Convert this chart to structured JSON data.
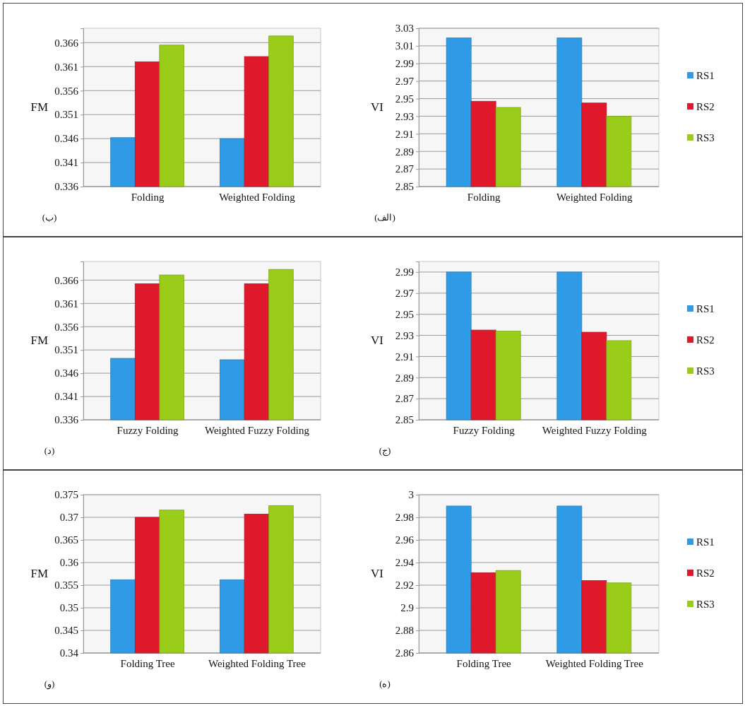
{
  "chart_data": [
    {
      "type": "bar",
      "ylabel": "FM",
      "categories": [
        "Folding",
        "Weighted Folding"
      ],
      "series": [
        {
          "color": "#2f9be6",
          "values": [
            0.3462,
            0.346
          ]
        },
        {
          "color": "#e0182c",
          "values": [
            0.362,
            0.3631
          ]
        },
        {
          "color": "#9acd1a",
          "values": [
            0.3655,
            0.3674
          ]
        }
      ],
      "ylim": [
        0.336,
        0.369
      ],
      "yticks": [
        0.336,
        0.341,
        0.346,
        0.351,
        0.356,
        0.361,
        0.366
      ],
      "grid": "y",
      "legend": false,
      "annotations": [
        "(ب)"
      ]
    },
    {
      "type": "bar",
      "ylabel": "VI",
      "categories": [
        "Folding",
        "Weighted Folding"
      ],
      "series": [
        {
          "name": "RS1",
          "color": "#2f9be6",
          "values": [
            3.019,
            3.019
          ]
        },
        {
          "name": "RS2",
          "color": "#e0182c",
          "values": [
            2.947,
            2.945
          ]
        },
        {
          "name": "RS3",
          "color": "#9acd1a",
          "values": [
            2.94,
            2.93
          ]
        }
      ],
      "ylim": [
        2.85,
        3.03
      ],
      "yticks": [
        2.85,
        2.87,
        2.89,
        2.91,
        2.93,
        2.95,
        2.97,
        2.99,
        3.01,
        3.03
      ],
      "grid": "y",
      "legend": "right",
      "annotations": [
        "(الف)"
      ]
    },
    {
      "type": "bar",
      "ylabel": "FM",
      "categories": [
        "Fuzzy Folding",
        "Weighted Fuzzy Folding"
      ],
      "series": [
        {
          "color": "#2f9be6",
          "values": [
            0.3492,
            0.3489
          ]
        },
        {
          "color": "#e0182c",
          "values": [
            0.3652,
            0.3652
          ]
        },
        {
          "color": "#9acd1a",
          "values": [
            0.3671,
            0.3683
          ]
        }
      ],
      "ylim": [
        0.336,
        0.37
      ],
      "yticks": [
        0.336,
        0.341,
        0.346,
        0.351,
        0.356,
        0.361,
        0.366
      ],
      "grid": "y",
      "legend": false,
      "annotations": [
        "(د)"
      ]
    },
    {
      "type": "bar",
      "ylabel": "VI",
      "categories": [
        "Fuzzy Folding",
        "Weighted Fuzzy Folding"
      ],
      "series": [
        {
          "name": "RS1",
          "color": "#2f9be6",
          "values": [
            2.99,
            2.99
          ]
        },
        {
          "name": "RS2",
          "color": "#e0182c",
          "values": [
            2.935,
            2.933
          ]
        },
        {
          "name": "RS3",
          "color": "#9acd1a",
          "values": [
            2.934,
            2.925
          ]
        }
      ],
      "ylim": [
        2.85,
        3.0
      ],
      "yticks": [
        2.85,
        2.87,
        2.89,
        2.91,
        2.93,
        2.95,
        2.97,
        2.99
      ],
      "grid": "y",
      "legend": "right",
      "annotations": [
        "(ج)"
      ]
    },
    {
      "type": "bar",
      "ylabel": "FM",
      "categories": [
        "Folding Tree",
        "Weighted Folding Tree"
      ],
      "series": [
        {
          "color": "#2f9be6",
          "values": [
            0.3562,
            0.3562
          ]
        },
        {
          "color": "#e0182c",
          "values": [
            0.37,
            0.3707
          ]
        },
        {
          "color": "#9acd1a",
          "values": [
            0.3716,
            0.3726
          ]
        }
      ],
      "ylim": [
        0.34,
        0.375
      ],
      "yticks": [
        0.34,
        0.345,
        0.35,
        0.355,
        0.36,
        0.365,
        0.37,
        0.375
      ],
      "grid": "y",
      "legend": false,
      "annotations": [
        "(و)"
      ]
    },
    {
      "type": "bar",
      "ylabel": "VI",
      "categories": [
        "Folding Tree",
        "Weighted Folding Tree"
      ],
      "series": [
        {
          "name": "RS1",
          "color": "#2f9be6",
          "values": [
            2.99,
            2.99
          ]
        },
        {
          "name": "RS2",
          "color": "#e0182c",
          "values": [
            2.931,
            2.924
          ]
        },
        {
          "name": "RS3",
          "color": "#9acd1a",
          "values": [
            2.933,
            2.922
          ]
        }
      ],
      "ylim": [
        2.86,
        3.0
      ],
      "yticks": [
        2.86,
        2.88,
        2.9,
        2.92,
        2.94,
        2.96,
        2.98,
        3
      ],
      "grid": "y",
      "legend": "right",
      "annotations": [
        "(ه)"
      ]
    }
  ]
}
